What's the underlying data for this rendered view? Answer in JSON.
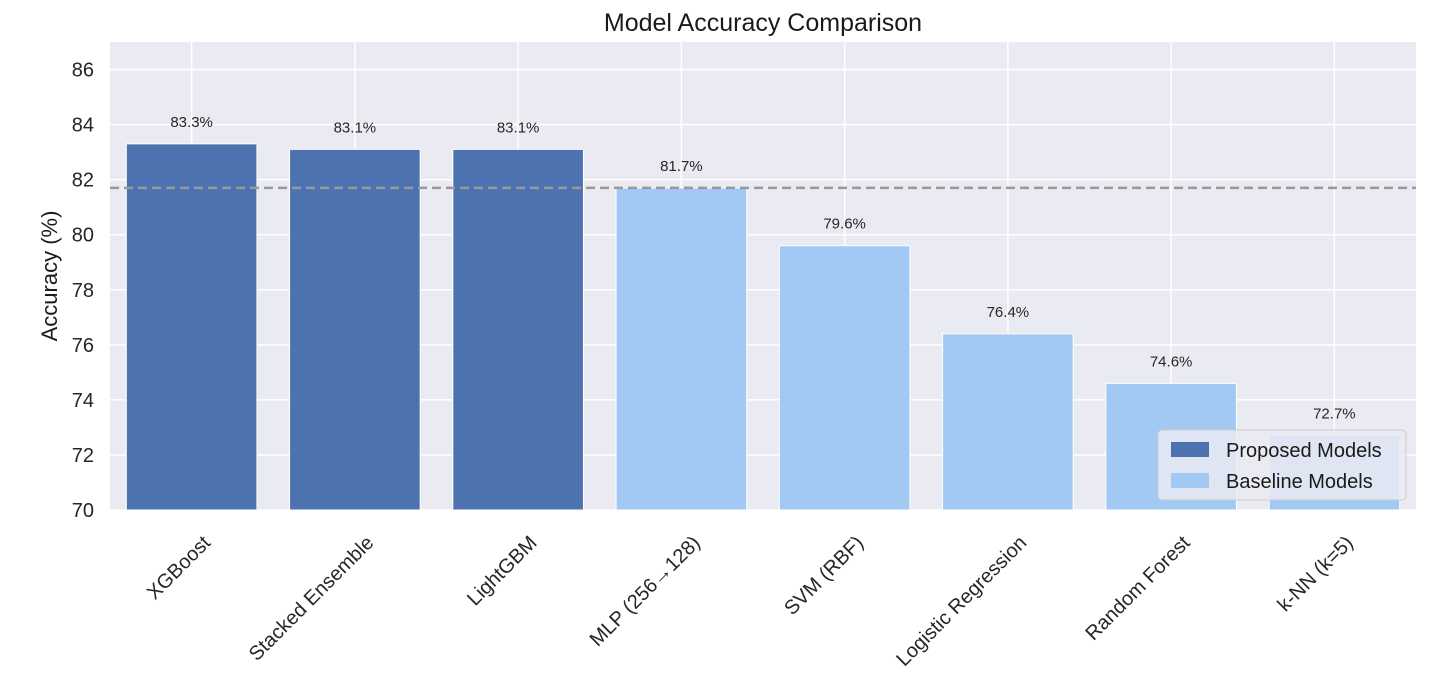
{
  "chart_data": {
    "type": "bar",
    "title": "Model Accuracy Comparison",
    "xlabel": "",
    "ylabel": "Accuracy (%)",
    "ylim": [
      70,
      87
    ],
    "yticks": [
      70,
      72,
      74,
      76,
      78,
      80,
      82,
      84,
      86
    ],
    "grid": true,
    "categories": [
      "XGBoost",
      "Stacked Ensemble",
      "LightGBM",
      "MLP (256→128)",
      "SVM (RBF)",
      "Logistic Regression",
      "Random Forest",
      "k-NN (k=5)"
    ],
    "values": [
      83.3,
      83.1,
      83.1,
      81.7,
      79.6,
      76.4,
      74.6,
      72.7
    ],
    "value_labels": [
      "83.3%",
      "83.1%",
      "83.1%",
      "81.7%",
      "79.6%",
      "76.4%",
      "74.6%",
      "72.7%"
    ],
    "groups": [
      "proposed",
      "proposed",
      "proposed",
      "baseline",
      "baseline",
      "baseline",
      "baseline",
      "baseline"
    ],
    "reference_line": {
      "y": 81.7,
      "style": "dashed",
      "color": "#999999"
    },
    "legend": {
      "placement": "lower-right",
      "entries": [
        {
          "key": "proposed",
          "label": "Proposed Models",
          "color": "#4c72b0"
        },
        {
          "key": "baseline",
          "label": "Baseline Models",
          "color": "#a1c9f4"
        }
      ]
    },
    "colors": {
      "plot_background": "#eaeaf2",
      "grid": "#ffffff",
      "proposed": "#4c72b0",
      "baseline": "#a1c9f4"
    }
  }
}
